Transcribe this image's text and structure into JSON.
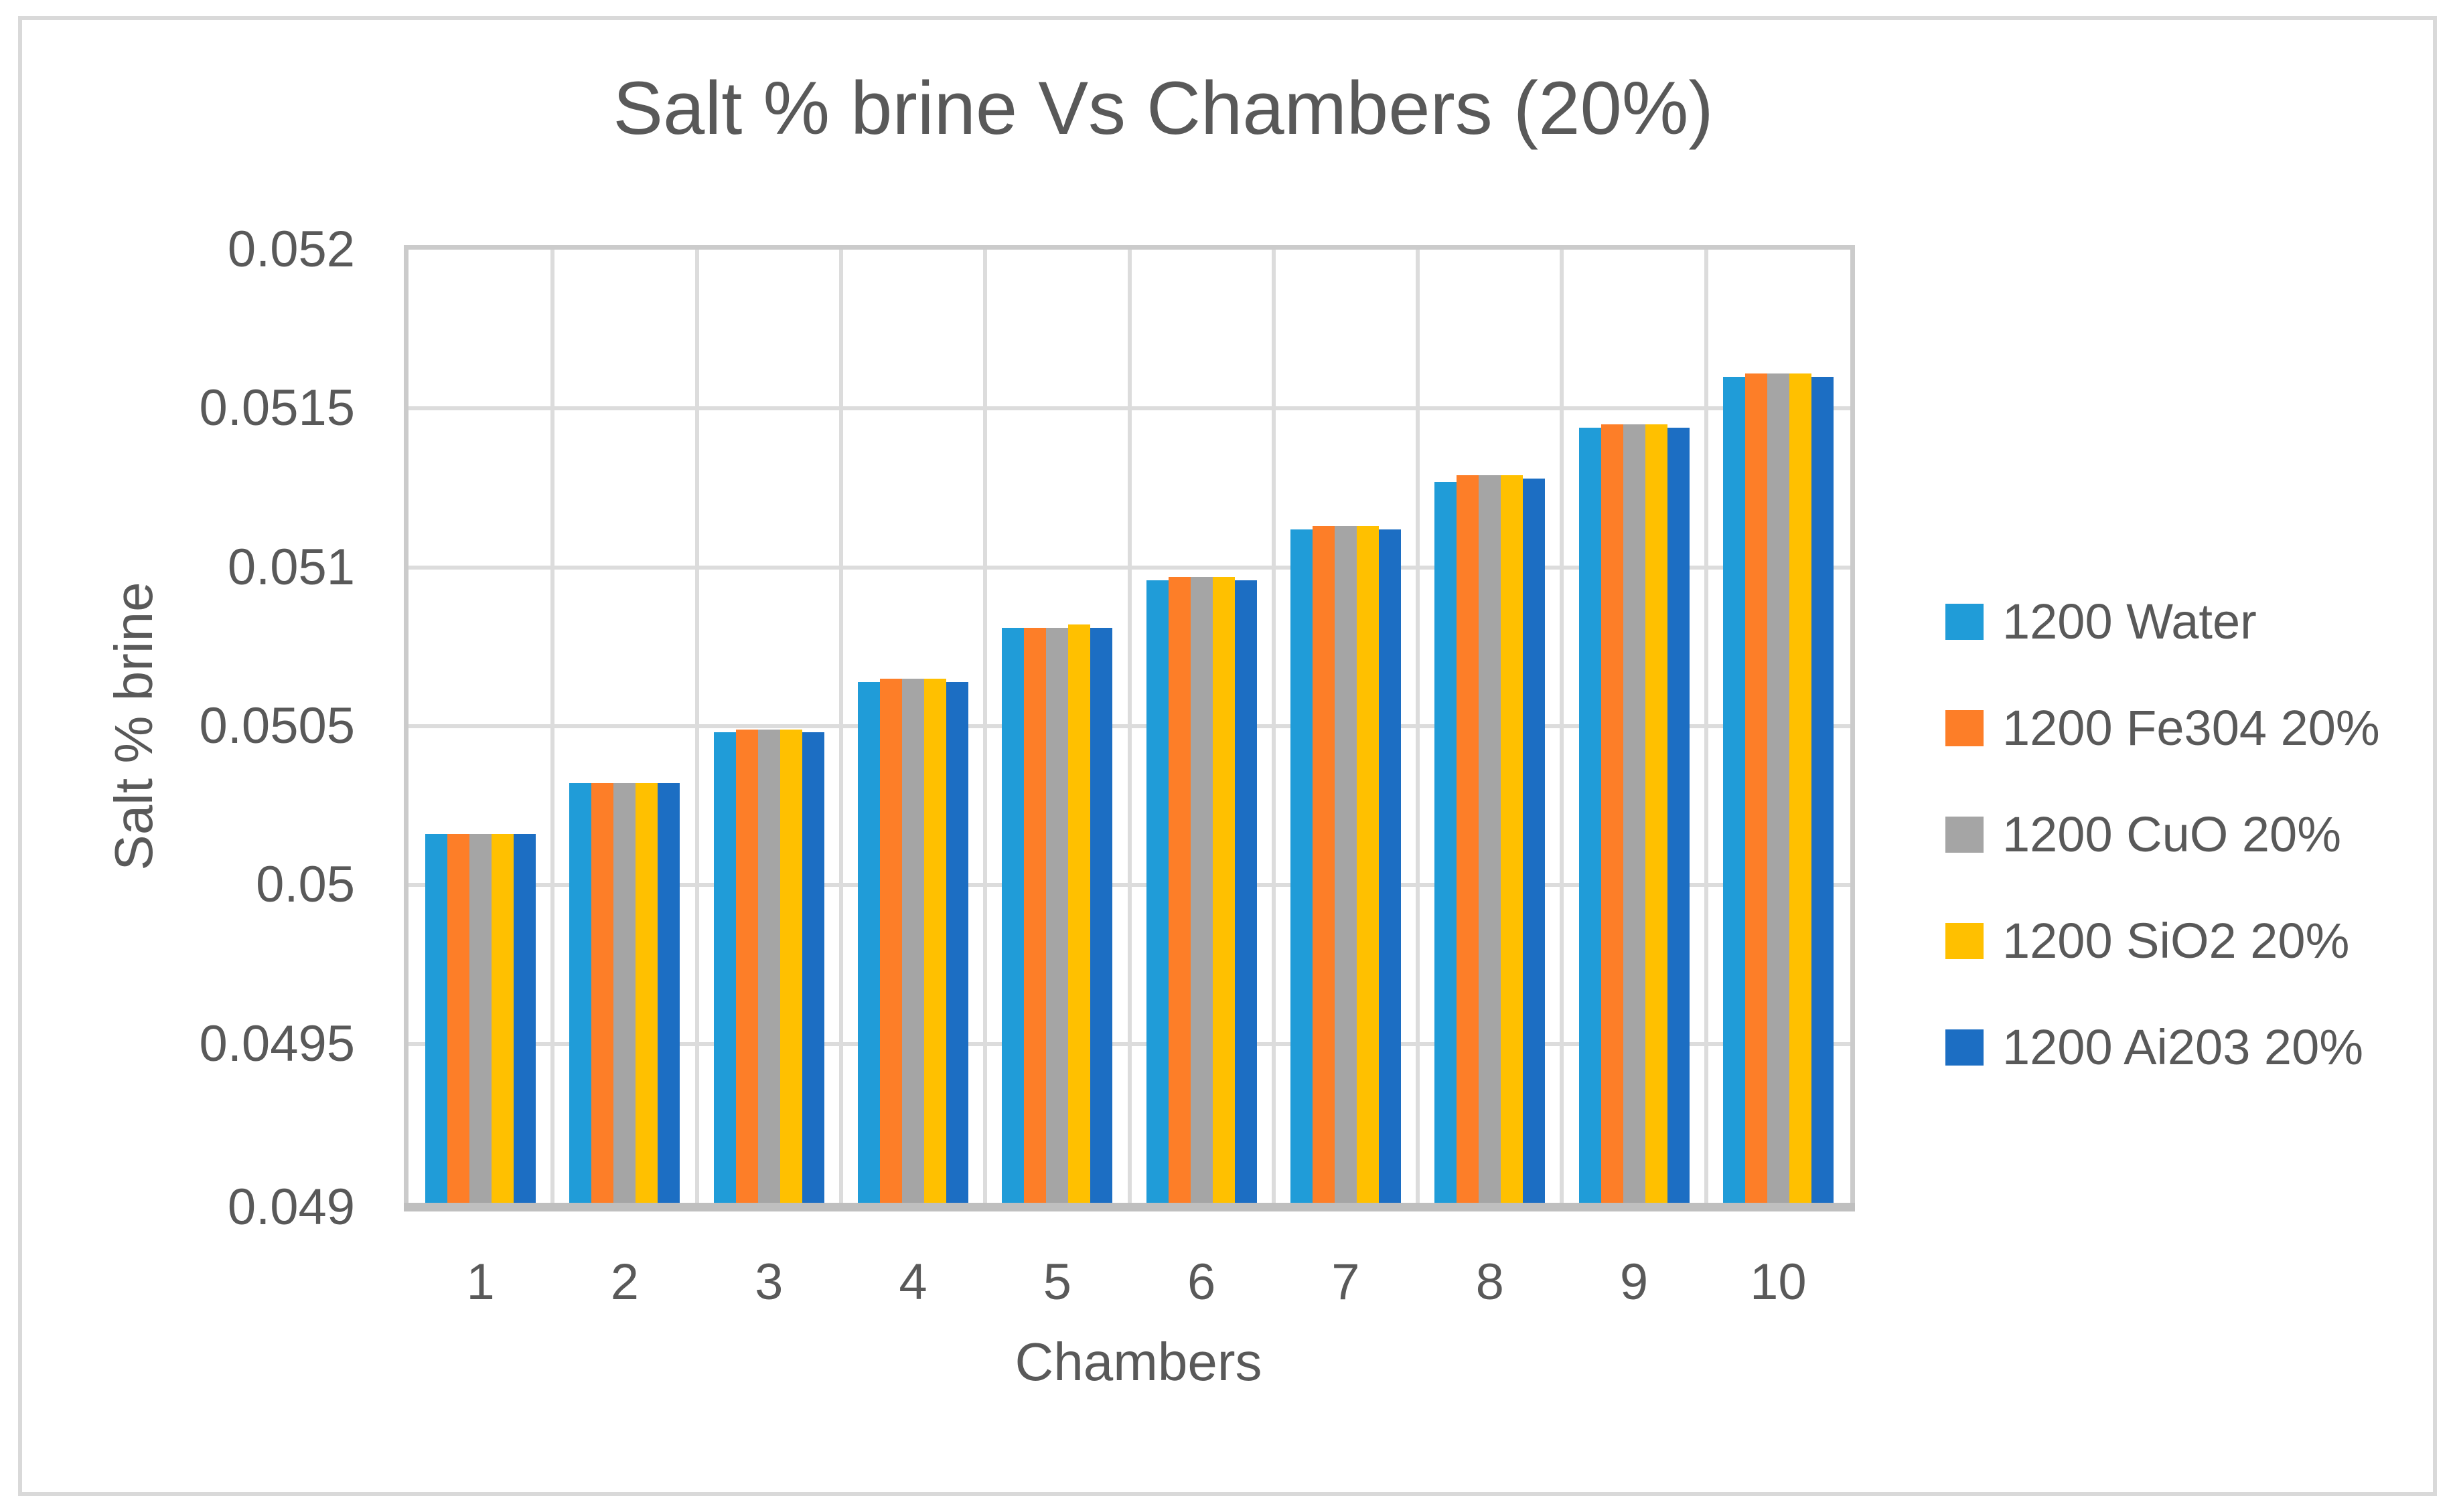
{
  "chart_data": {
    "type": "bar",
    "title": "Salt % brine Vs Chambers (20%)",
    "xlabel": "Chambers",
    "ylabel": "Salt % brine",
    "categories": [
      "1",
      "2",
      "3",
      "4",
      "5",
      "6",
      "7",
      "8",
      "9",
      "10"
    ],
    "series": [
      {
        "name": "1200 Water",
        "color": "#209CD8",
        "values": [
          0.05016,
          0.05032,
          0.05048,
          0.05064,
          0.05081,
          0.05096,
          0.05112,
          0.05127,
          0.05144,
          0.0516
        ]
      },
      {
        "name": "1200 Fe304 20%",
        "color": "#FD7E28",
        "values": [
          0.05016,
          0.05032,
          0.05049,
          0.05065,
          0.05081,
          0.05097,
          0.05113,
          0.05129,
          0.05145,
          0.05161
        ]
      },
      {
        "name": "1200 CuO 20%",
        "color": "#A5A5A5",
        "values": [
          0.05016,
          0.05032,
          0.05049,
          0.05065,
          0.05081,
          0.05097,
          0.05113,
          0.05129,
          0.05145,
          0.05161
        ]
      },
      {
        "name": "1200 SiO2 20%",
        "color": "#FFC000",
        "values": [
          0.05016,
          0.05032,
          0.05049,
          0.05065,
          0.05082,
          0.05097,
          0.05113,
          0.05129,
          0.05145,
          0.05161
        ]
      },
      {
        "name": "1200 Ai203 20%",
        "color": "#1C6EC3",
        "values": [
          0.05016,
          0.05032,
          0.05048,
          0.05064,
          0.05081,
          0.05096,
          0.05112,
          0.05128,
          0.05144,
          0.0516
        ]
      }
    ],
    "ylim": [
      0.049,
      0.052
    ],
    "y_ticks": [
      {
        "label": "0.052",
        "value": 0.052
      },
      {
        "label": "0.0515",
        "value": 0.0515
      },
      {
        "label": "0.051",
        "value": 0.051
      },
      {
        "label": "0.0505",
        "value": 0.0505
      },
      {
        "label": "0.05",
        "value": 0.05
      },
      {
        "label": "0.0495",
        "value": 0.0495
      },
      {
        "label": "0.049",
        "value": 0.049
      }
    ],
    "grid": true,
    "legend_position": "right"
  },
  "colors": {
    "text": "#595959",
    "gridline": "#DCDCDC",
    "plot_frame": "#CBCBCB",
    "x_axis_line": "#BFBFBF",
    "chart_border": "#D9D9D9",
    "background": "#FFFFFF"
  }
}
